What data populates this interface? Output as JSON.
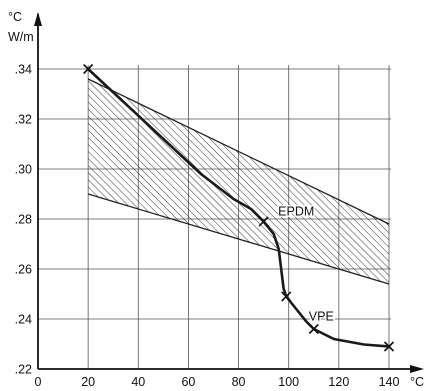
{
  "chart_data": {
    "type": "line",
    "y_unit_label": "°C\nW/m",
    "x_unit_label": "°C",
    "xlim": [
      0,
      140
    ],
    "ylim": [
      0.22,
      0.34
    ],
    "x_ticks": [
      "0",
      "20",
      "40",
      "60",
      "80",
      "100",
      "120",
      "140"
    ],
    "y_ticks": [
      ".22",
      ".24",
      ".26",
      ".28",
      ".30",
      ".32",
      ".34"
    ],
    "grid": true,
    "series": [
      {
        "name": "VPE",
        "style": "thick-line-with-x-markers",
        "points": [
          [
            20,
            0.34
          ],
          [
            35,
            0.326
          ],
          [
            50,
            0.312
          ],
          [
            65,
            0.298
          ],
          [
            78,
            0.288
          ],
          [
            85,
            0.284
          ],
          [
            90,
            0.279
          ],
          [
            94,
            0.274
          ],
          [
            96,
            0.268
          ],
          [
            97,
            0.26
          ],
          [
            97.5,
            0.256
          ],
          [
            98,
            0.252
          ],
          [
            99,
            0.249
          ],
          [
            103,
            0.244
          ],
          [
            107,
            0.239
          ],
          [
            110,
            0.236
          ],
          [
            118,
            0.232
          ],
          [
            130,
            0.2298
          ],
          [
            140,
            0.229
          ]
        ],
        "markers": [
          [
            20,
            0.34
          ],
          [
            90,
            0.279
          ],
          [
            99,
            0.249
          ],
          [
            110,
            0.236
          ],
          [
            140,
            0.229
          ]
        ]
      }
    ],
    "band": {
      "name": "EPDM",
      "style": "hatched",
      "upper": [
        [
          20,
          0.336
        ],
        [
          140,
          0.278
        ]
      ],
      "lower": [
        [
          20,
          0.29
        ],
        [
          140,
          0.254
        ]
      ]
    },
    "annotations": [
      {
        "text": "EPDM",
        "x": 103,
        "y": 0.283
      },
      {
        "text": "VPE",
        "x": 113,
        "y": 0.241
      }
    ]
  }
}
